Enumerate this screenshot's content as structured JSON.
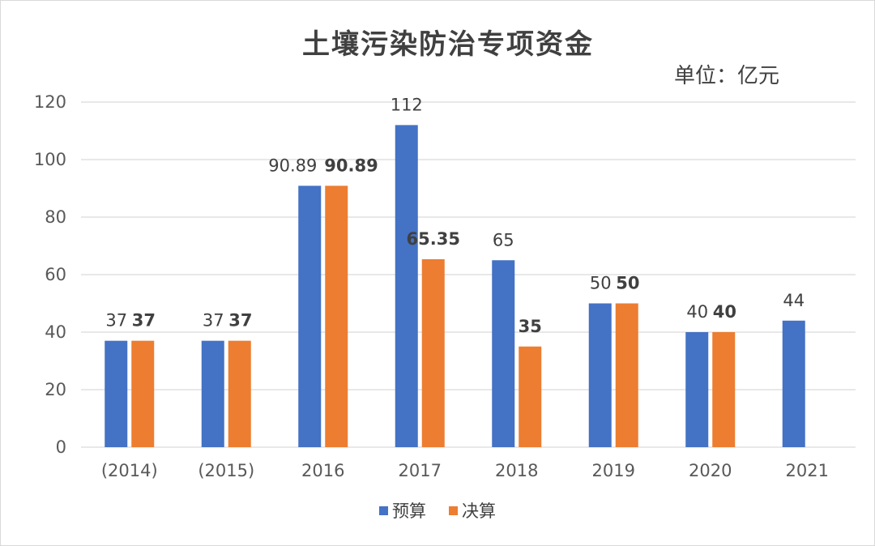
{
  "chart_data": {
    "type": "bar",
    "title": "土壤污染防治专项资金",
    "unit_label": "单位：亿元",
    "categories": [
      "(2014)",
      "(2015)",
      "2016",
      "2017",
      "2018",
      "2019",
      "2020",
      "2021"
    ],
    "series": [
      {
        "name": "预算",
        "color": "#4472C4",
        "values": [
          37,
          37,
          90.89,
          112,
          65,
          50,
          40,
          44
        ],
        "labels": [
          "37",
          "37",
          "90.89",
          "112",
          "65",
          "50",
          "40",
          "44"
        ]
      },
      {
        "name": "决算",
        "color": "#ED7D31",
        "values": [
          37,
          37,
          90.89,
          65.35,
          35,
          50,
          40,
          null
        ],
        "labels": [
          "37",
          "37",
          "90.89",
          "65.35",
          "35",
          "50",
          "40",
          null
        ]
      }
    ],
    "yticks": [
      "0",
      "20",
      "40",
      "60",
      "80",
      "100",
      "120"
    ],
    "ylim": [
      0,
      120
    ],
    "grid": true,
    "legend_position": "bottom"
  }
}
